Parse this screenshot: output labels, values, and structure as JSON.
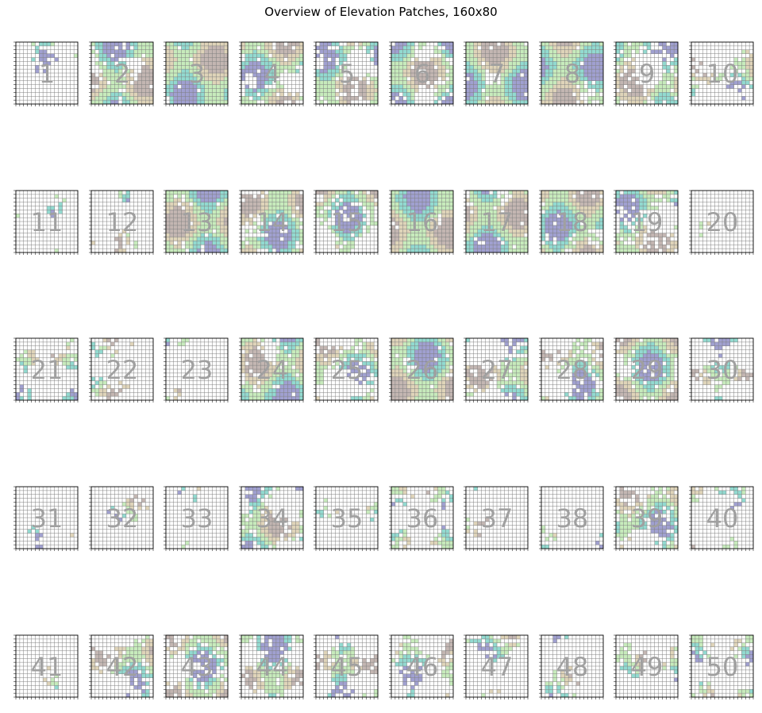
{
  "title": "Overview of Elevation Patches, 160x80",
  "chart_data": {
    "type": "heatmap",
    "title": "Overview of Elevation Patches, 160x80",
    "layout": "5 rows x 10 columns of 16x16 patches",
    "grid": true,
    "colors": {
      "low": "#8f8fc8",
      "mid_low": "#7fd3c8",
      "mid": "#bde8b0",
      "mid_high": "#d9ccad",
      "high": "#b8a9a5",
      "missing": "#ffffff",
      "label": "#a0a0a0",
      "grid_line": "#808080"
    },
    "patches": [
      {
        "label": "1"
      },
      {
        "label": "2"
      },
      {
        "label": "3"
      },
      {
        "label": "4"
      },
      {
        "label": "5"
      },
      {
        "label": "6"
      },
      {
        "label": "7"
      },
      {
        "label": "8"
      },
      {
        "label": "9"
      },
      {
        "label": "10"
      },
      {
        "label": "11"
      },
      {
        "label": "12"
      },
      {
        "label": "13"
      },
      {
        "label": "14"
      },
      {
        "label": "15"
      },
      {
        "label": "16"
      },
      {
        "label": "17"
      },
      {
        "label": "18"
      },
      {
        "label": "19"
      },
      {
        "label": "20"
      },
      {
        "label": "21"
      },
      {
        "label": "22"
      },
      {
        "label": "23"
      },
      {
        "label": "24"
      },
      {
        "label": "25"
      },
      {
        "label": "26"
      },
      {
        "label": "27"
      },
      {
        "label": "28"
      },
      {
        "label": "29"
      },
      {
        "label": "30"
      },
      {
        "label": "31"
      },
      {
        "label": "32"
      },
      {
        "label": "33"
      },
      {
        "label": "34"
      },
      {
        "label": "35"
      },
      {
        "label": "36"
      },
      {
        "label": "37"
      },
      {
        "label": "38"
      },
      {
        "label": "39"
      },
      {
        "label": "40"
      },
      {
        "label": "41"
      },
      {
        "label": "42"
      },
      {
        "label": "43"
      },
      {
        "label": "44"
      },
      {
        "label": "45"
      },
      {
        "label": "46"
      },
      {
        "label": "47"
      },
      {
        "label": "48"
      },
      {
        "label": "49"
      },
      {
        "label": "50"
      }
    ],
    "density": [
      0.25,
      0.8,
      0.95,
      0.7,
      0.6,
      0.75,
      0.9,
      0.95,
      0.65,
      0.35,
      0.15,
      0.2,
      0.95,
      0.8,
      0.6,
      1.0,
      0.9,
      0.85,
      0.6,
      0.05,
      0.3,
      0.25,
      0.2,
      0.85,
      0.5,
      0.95,
      0.6,
      0.55,
      0.75,
      0.45,
      0.05,
      0.1,
      0.05,
      0.55,
      0.1,
      0.25,
      0.15,
      0.1,
      0.6,
      0.3,
      0.15,
      0.55,
      0.6,
      0.6,
      0.5,
      0.35,
      0.25,
      0.25,
      0.3,
      0.3
    ]
  }
}
